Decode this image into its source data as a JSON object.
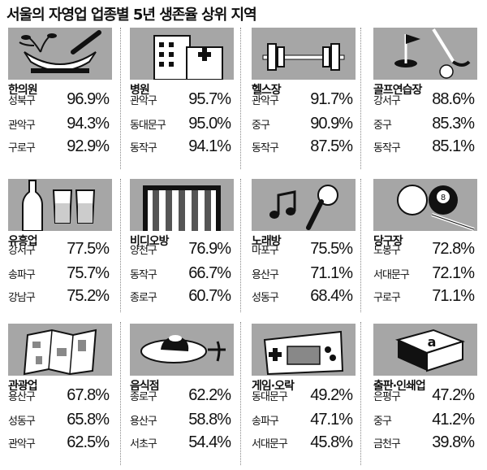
{
  "title": "서울의 자영업 업종별 5년 생존율 상위 지역",
  "categories": [
    {
      "name": "한의원",
      "icon": "mortar-and-herbs-icon",
      "rows": [
        {
          "district": "성북구",
          "rate": "96.9%"
        },
        {
          "district": "관악구",
          "rate": "94.3%"
        },
        {
          "district": "구로구",
          "rate": "92.9%"
        }
      ]
    },
    {
      "name": "병원",
      "icon": "hospital-building-icon",
      "rows": [
        {
          "district": "관악구",
          "rate": "95.7%"
        },
        {
          "district": "동대문구",
          "rate": "95.0%"
        },
        {
          "district": "동작구",
          "rate": "94.1%"
        }
      ]
    },
    {
      "name": "헬스장",
      "icon": "barbell-icon",
      "rows": [
        {
          "district": "관악구",
          "rate": "91.7%"
        },
        {
          "district": "중구",
          "rate": "90.9%"
        },
        {
          "district": "동작구",
          "rate": "87.5%"
        }
      ]
    },
    {
      "name": "골프연습장",
      "icon": "golf-flag-icon",
      "rows": [
        {
          "district": "강서구",
          "rate": "88.6%"
        },
        {
          "district": "중구",
          "rate": "85.3%"
        },
        {
          "district": "동작구",
          "rate": "85.1%"
        }
      ]
    },
    {
      "name": "유흥업",
      "icon": "bottle-and-glasses-icon",
      "rows": [
        {
          "district": "강서구",
          "rate": "77.5%"
        },
        {
          "district": "송파구",
          "rate": "75.7%"
        },
        {
          "district": "강남구",
          "rate": "75.2%"
        }
      ]
    },
    {
      "name": "비디오방",
      "icon": "video-screen-icon",
      "rows": [
        {
          "district": "양천구",
          "rate": "76.9%"
        },
        {
          "district": "동작구",
          "rate": "66.7%"
        },
        {
          "district": "종로구",
          "rate": "60.7%"
        }
      ]
    },
    {
      "name": "노래방",
      "icon": "music-note-microphone-icon",
      "rows": [
        {
          "district": "마포구",
          "rate": "75.5%"
        },
        {
          "district": "용산구",
          "rate": "71.1%"
        },
        {
          "district": "성동구",
          "rate": "68.4%"
        }
      ]
    },
    {
      "name": "당구장",
      "icon": "billiard-balls-icon",
      "rows": [
        {
          "district": "도봉구",
          "rate": "72.8%"
        },
        {
          "district": "서대문구",
          "rate": "72.1%"
        },
        {
          "district": "구로구",
          "rate": "71.1%"
        }
      ]
    },
    {
      "name": "관광업",
      "icon": "tour-map-icon",
      "rows": [
        {
          "district": "용산구",
          "rate": "67.8%"
        },
        {
          "district": "성동구",
          "rate": "65.8%"
        },
        {
          "district": "관악구",
          "rate": "62.5%"
        }
      ]
    },
    {
      "name": "음식점",
      "icon": "cake-plate-icon",
      "rows": [
        {
          "district": "종로구",
          "rate": "62.2%"
        },
        {
          "district": "용산구",
          "rate": "58.8%"
        },
        {
          "district": "서초구",
          "rate": "54.4%"
        }
      ]
    },
    {
      "name": "게임·오락",
      "icon": "game-controller-icon",
      "rows": [
        {
          "district": "동대문구",
          "rate": "49.2%"
        },
        {
          "district": "송파구",
          "rate": "47.1%"
        },
        {
          "district": "서대문구",
          "rate": "45.8%"
        }
      ]
    },
    {
      "name": "출판·인쇄업",
      "icon": "book-icon",
      "rows": [
        {
          "district": "은평구",
          "rate": "47.2%"
        },
        {
          "district": "중구",
          "rate": "41.2%"
        },
        {
          "district": "금천구",
          "rate": "39.8%"
        }
      ]
    }
  ]
}
